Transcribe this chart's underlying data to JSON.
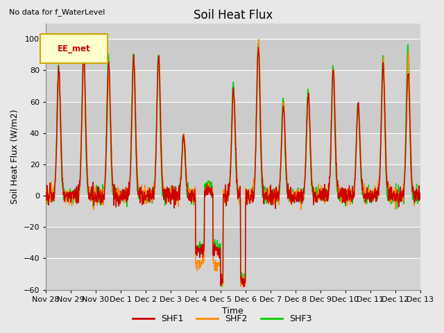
{
  "title": "Soil Heat Flux",
  "subtitle": "No data for f_WaterLevel",
  "ylabel": "Soil Heat Flux (W/m2)",
  "xlabel": "Time",
  "ylim": [
    -60,
    110
  ],
  "yticks": [
    -60,
    -40,
    -20,
    0,
    20,
    40,
    60,
    80,
    100
  ],
  "background_color": "#e8e8e8",
  "plot_bg_color": "#d3d3d3",
  "legend_label": "EE_met",
  "series": [
    "SHF1",
    "SHF2",
    "SHF3"
  ],
  "colors": [
    "#cc0000",
    "#ff8800",
    "#00cc00"
  ],
  "linewidths": [
    1.0,
    1.0,
    1.0
  ],
  "title_fontsize": 12,
  "axis_fontsize": 9,
  "tick_fontsize": 8,
  "n_days": 15,
  "pts_per_day": 96
}
